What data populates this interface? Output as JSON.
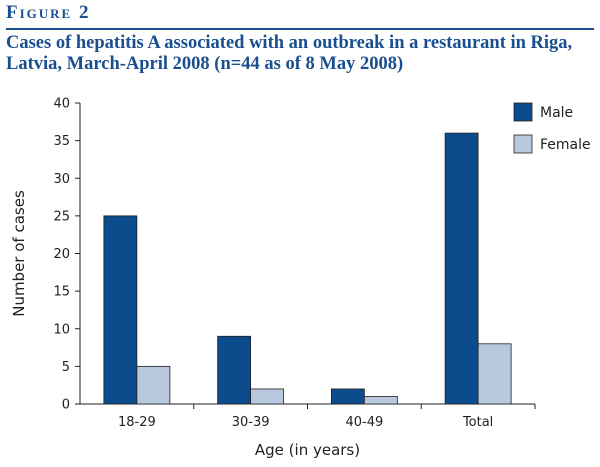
{
  "figure": {
    "label": "Figure 2",
    "caption": "Cases of hepatitis A associated with an outbreak in a restaurant in Riga, Latvia, March-April 2008 (n=44 as of 8 May 2008)"
  },
  "colors": {
    "male": "#0d4c8c",
    "female": "#b7c8df",
    "text": "#1a4f8f",
    "axis": "#222222"
  },
  "chart_data": {
    "type": "bar",
    "categories": [
      "18-29",
      "30-39",
      "40-49",
      "Total"
    ],
    "series": [
      {
        "name": "Male",
        "values": [
          25,
          9,
          2,
          36
        ]
      },
      {
        "name": "Female",
        "values": [
          5,
          2,
          1,
          8
        ]
      }
    ],
    "xlabel": "Age (in years)",
    "ylabel": "Number of cases",
    "ylim": [
      0,
      40
    ],
    "yticks": [
      0,
      5,
      10,
      15,
      20,
      25,
      30,
      35,
      40
    ],
    "legend_position": "top-right",
    "grid": false
  }
}
